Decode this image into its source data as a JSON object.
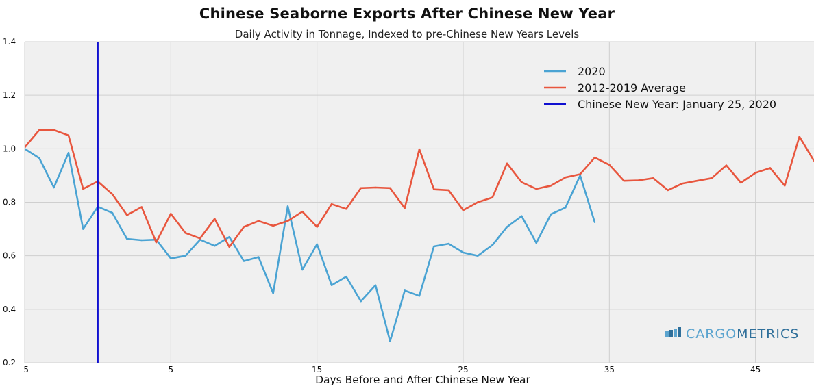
{
  "chart_data": {
    "type": "line",
    "title": "Chinese Seaborne Exports After Chinese New Year",
    "subtitle": "Daily Activity in Tonnage, Indexed to pre-Chinese New Years Levels",
    "xlabel": "Days Before and After Chinese New Year",
    "ylabel": "",
    "xlim": [
      -5,
      49
    ],
    "ylim": [
      0.2,
      1.4
    ],
    "xticks": [
      "-5",
      "5",
      "15",
      "25",
      "35",
      "45"
    ],
    "yticks": [
      "0.2",
      "0.4",
      "0.6",
      "0.8",
      "1.0",
      "1.2",
      "1.4"
    ],
    "grid": true,
    "legend_position": "top-right",
    "series": [
      {
        "name": "2020",
        "color": "#4aa3d3",
        "x": [
          -5,
          -4,
          -3,
          -2,
          -1,
          0,
          1,
          2,
          3,
          4,
          5,
          6,
          7,
          8,
          9,
          10,
          11,
          12,
          13,
          14,
          15,
          16,
          17,
          18,
          19,
          20,
          21,
          22,
          23,
          24,
          25,
          26,
          27,
          28,
          29,
          30,
          31,
          32,
          33,
          34
        ],
        "values": [
          1.0,
          0.965,
          0.855,
          0.985,
          0.7,
          0.783,
          0.76,
          0.663,
          0.658,
          0.66,
          0.59,
          0.6,
          0.66,
          0.637,
          0.67,
          0.58,
          0.595,
          0.46,
          0.785,
          0.548,
          0.643,
          0.49,
          0.522,
          0.43,
          0.49,
          0.28,
          0.47,
          0.45,
          0.635,
          0.645,
          0.612,
          0.6,
          0.64,
          0.708,
          0.748,
          0.648,
          0.755,
          0.78,
          0.9,
          0.725
        ]
      },
      {
        "name": "2012-2019 Average",
        "color": "#e8563e",
        "x": [
          -5,
          -4,
          -3,
          -2,
          -1,
          0,
          1,
          2,
          3,
          4,
          5,
          6,
          7,
          8,
          9,
          10,
          11,
          12,
          13,
          14,
          15,
          16,
          17,
          18,
          19,
          20,
          21,
          22,
          23,
          24,
          25,
          26,
          27,
          28,
          29,
          30,
          31,
          32,
          33,
          34,
          35,
          36,
          37,
          38,
          39,
          40,
          41,
          42,
          43,
          44,
          45,
          46,
          47,
          48,
          49
        ],
        "values": [
          1.005,
          1.07,
          1.07,
          1.05,
          0.85,
          0.878,
          0.83,
          0.752,
          0.782,
          0.65,
          0.757,
          0.685,
          0.665,
          0.738,
          0.633,
          0.708,
          0.73,
          0.712,
          0.73,
          0.765,
          0.708,
          0.793,
          0.775,
          0.853,
          0.855,
          0.853,
          0.778,
          0.998,
          0.848,
          0.845,
          0.77,
          0.8,
          0.818,
          0.945,
          0.875,
          0.85,
          0.862,
          0.893,
          0.905,
          0.967,
          0.94,
          0.88,
          0.882,
          0.89,
          0.845,
          0.87,
          0.88,
          0.89,
          0.938,
          0.873,
          0.91,
          0.928,
          0.862,
          1.045,
          0.955
        ]
      },
      {
        "name": "Chinese New Year: January 25, 2020",
        "color": "#1010d0",
        "type": "vline",
        "x": 0
      }
    ]
  },
  "watermark": {
    "part1": "CARGO",
    "part2": "METRICS",
    "color1": "#5ba4cf",
    "color2": "#2f6f9a"
  }
}
